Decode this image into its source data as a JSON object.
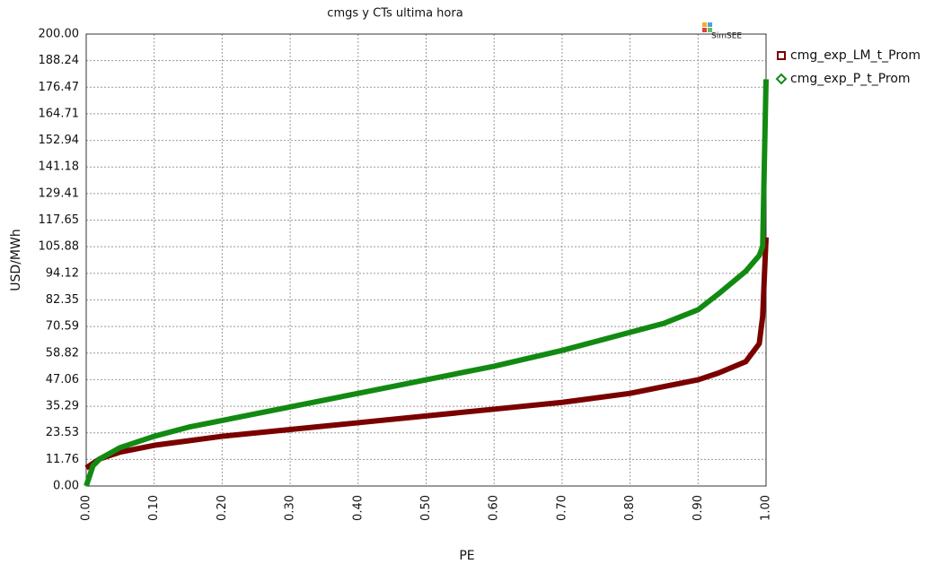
{
  "chart_data": {
    "type": "line",
    "title": "cmgs y CTs ultima hora",
    "watermark": "SimSEE",
    "x_label": "PE",
    "y_label": "USD/MWh",
    "grid": true,
    "xlim": [
      0,
      1
    ],
    "ylim": [
      0,
      200
    ],
    "xticks": [
      {
        "value": 0,
        "label": "0.00"
      },
      {
        "value": 0.1,
        "label": "0.10"
      },
      {
        "value": 0.2,
        "label": "0.20"
      },
      {
        "value": 0.3,
        "label": "0.30"
      },
      {
        "value": 0.4,
        "label": "0.40"
      },
      {
        "value": 0.5,
        "label": "0.50"
      },
      {
        "value": 0.6,
        "label": "0.60"
      },
      {
        "value": 0.7,
        "label": "0.70"
      },
      {
        "value": 0.8,
        "label": "0.80"
      },
      {
        "value": 0.9,
        "label": "0.90"
      },
      {
        "value": 1,
        "label": "1.00"
      }
    ],
    "yticks": [
      {
        "value": 0,
        "label": "0.00"
      },
      {
        "value": 11.76,
        "label": "11.76"
      },
      {
        "value": 23.53,
        "label": "23.53"
      },
      {
        "value": 35.29,
        "label": "35.29"
      },
      {
        "value": 47.06,
        "label": "47.06"
      },
      {
        "value": 58.82,
        "label": "58.82"
      },
      {
        "value": 70.59,
        "label": "70.59"
      },
      {
        "value": 82.35,
        "label": "82.35"
      },
      {
        "value": 94.12,
        "label": "94.12"
      },
      {
        "value": 105.88,
        "label": "105.88"
      },
      {
        "value": 117.65,
        "label": "117.65"
      },
      {
        "value": 129.41,
        "label": "129.41"
      },
      {
        "value": 141.18,
        "label": "141.18"
      },
      {
        "value": 152.94,
        "label": "152.94"
      },
      {
        "value": 164.71,
        "label": "164.71"
      },
      {
        "value": 176.47,
        "label": "176.47"
      },
      {
        "value": 188.24,
        "label": "188.24"
      },
      {
        "value": 200,
        "label": "200.00"
      }
    ],
    "x": [
      0,
      0.01,
      0.02,
      0.05,
      0.1,
      0.15,
      0.2,
      0.3,
      0.4,
      0.5,
      0.6,
      0.7,
      0.8,
      0.85,
      0.9,
      0.93,
      0.97,
      0.99,
      0.995,
      1
    ],
    "series": [
      {
        "name": "cmg_exp_LM_t_Prom",
        "color": "#7a0000",
        "marker": "square",
        "values": [
          8,
          10,
          12,
          15,
          18,
          20,
          22,
          25,
          28,
          31,
          34,
          37,
          41,
          44,
          47,
          50,
          55,
          63,
          75,
          110
        ]
      },
      {
        "name": "cmg_exp_P_t_Prom",
        "color": "#128a12",
        "marker": "diamond",
        "values": [
          0,
          9,
          12,
          17,
          22,
          26,
          29,
          35,
          41,
          47,
          53,
          60,
          68,
          72,
          78,
          85,
          95,
          102,
          106,
          180
        ]
      }
    ]
  }
}
